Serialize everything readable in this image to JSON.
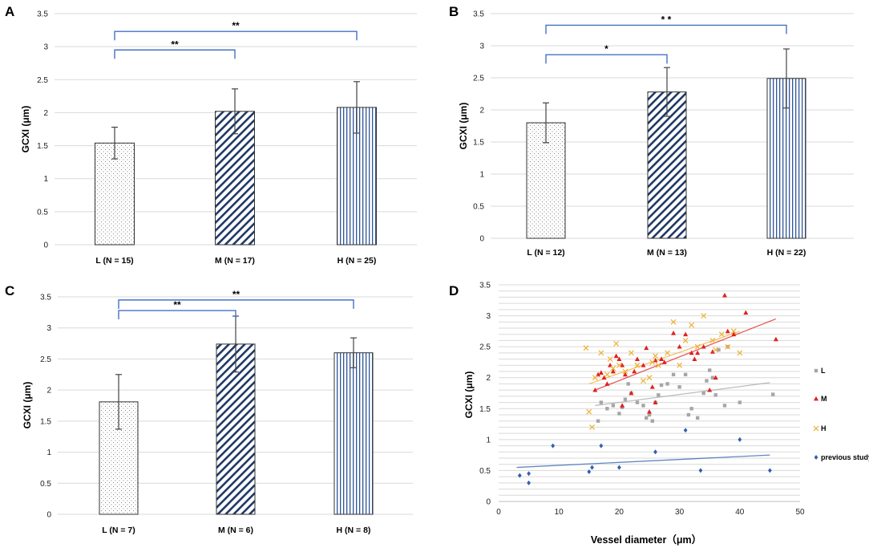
{
  "chart_data": [
    {
      "panel": "A",
      "type": "bar",
      "ylabel": "GCXI (μm)",
      "categories": [
        "L (N = 15)",
        "M (N = 17)",
        "H (N = 25)"
      ],
      "values": [
        1.54,
        2.02,
        2.08
      ],
      "errors": [
        0.24,
        0.34,
        0.39
      ],
      "patterns": [
        "dots",
        "diagonal",
        "vertical"
      ],
      "ylim": [
        0,
        3.5
      ],
      "yticks": [
        "0",
        "0.5",
        "1",
        "1.5",
        "2",
        "2.5",
        "3",
        "3.5"
      ],
      "significance": [
        {
          "from": 0,
          "to": 1,
          "label": "**",
          "level": 2.95
        },
        {
          "from": 0,
          "to": 2,
          "label": "**",
          "level": 3.23
        }
      ]
    },
    {
      "panel": "B",
      "type": "bar",
      "ylabel": "GCXI (μm)",
      "categories": [
        "L (N = 12)",
        "M (N = 13)",
        "H (N = 22)"
      ],
      "values": [
        1.8,
        2.28,
        2.49
      ],
      "errors": [
        0.31,
        0.38,
        0.46
      ],
      "patterns": [
        "dots",
        "diagonal",
        "vertical"
      ],
      "ylim": [
        0,
        3.5
      ],
      "yticks": [
        "0",
        "0.5",
        "1",
        "1.5",
        "2",
        "2.5",
        "3",
        "3.5"
      ],
      "significance": [
        {
          "from": 0,
          "to": 1,
          "label": "*",
          "level": 2.86
        },
        {
          "from": 0,
          "to": 2,
          "label": "* *",
          "level": 3.32
        }
      ]
    },
    {
      "panel": "C",
      "type": "bar",
      "ylabel": "GCXI (μm)",
      "categories": [
        "L (N = 7)",
        "M (N = 6)",
        "H (N = 8)"
      ],
      "values": [
        1.81,
        2.74,
        2.6
      ],
      "errors": [
        0.44,
        0.45,
        0.24
      ],
      "patterns": [
        "dots",
        "diagonal",
        "vertical"
      ],
      "ylim": [
        0,
        3.5
      ],
      "yticks": [
        "0",
        "0.5",
        "1",
        "1.5",
        "2",
        "2.5",
        "3",
        "3.5"
      ],
      "significance": [
        {
          "from": 0,
          "to": 1,
          "label": "**",
          "level": 3.28
        },
        {
          "from": 0,
          "to": 2,
          "label": "**",
          "level": 3.45
        }
      ]
    },
    {
      "panel": "D",
      "type": "scatter",
      "xlabel": "Vessel diameter（μm）",
      "ylabel": "GCXI (μm)",
      "xlim": [
        0,
        50
      ],
      "ylim": [
        0,
        3.5
      ],
      "xticks": [
        "0",
        "10",
        "20",
        "30",
        "40",
        "50"
      ],
      "yticks": [
        "0",
        "0.5",
        "1",
        "1.5",
        "2",
        "2.5",
        "3",
        "3.5"
      ],
      "series": [
        {
          "name": "L",
          "marker": "square",
          "color": "#a6a6a6",
          "trend": [
            [
              16,
              1.55
            ],
            [
              45,
              1.92
            ]
          ],
          "points": [
            [
              16.5,
              1.3
            ],
            [
              17,
              1.6
            ],
            [
              18,
              1.5
            ],
            [
              19,
              1.55
            ],
            [
              20,
              1.42
            ],
            [
              20.5,
              1.52
            ],
            [
              21,
              1.65
            ],
            [
              21.5,
              1.9
            ],
            [
              22,
              1.75
            ],
            [
              23,
              1.6
            ],
            [
              24,
              1.55
            ],
            [
              24.5,
              1.35
            ],
            [
              25,
              1.4
            ],
            [
              25.5,
              1.3
            ],
            [
              26,
              1.6
            ],
            [
              26.5,
              1.72
            ],
            [
              27,
              1.88
            ],
            [
              28,
              1.9
            ],
            [
              29,
              2.05
            ],
            [
              30,
              1.85
            ],
            [
              31,
              2.05
            ],
            [
              32,
              1.5
            ],
            [
              33,
              1.35
            ],
            [
              34,
              1.75
            ],
            [
              34.5,
              1.95
            ],
            [
              35,
              2.12
            ],
            [
              35.5,
              2.0
            ],
            [
              36,
              1.72
            ],
            [
              36.5,
              2.45
            ],
            [
              37.5,
              1.55
            ],
            [
              38,
              2.5
            ],
            [
              40,
              1.6
            ],
            [
              45.5,
              1.73
            ],
            [
              31.5,
              1.4
            ]
          ]
        },
        {
          "name": "M",
          "marker": "triangle",
          "color": "#e02020",
          "trend": [
            [
              16,
              1.8
            ],
            [
              46,
              2.95
            ]
          ],
          "points": [
            [
              16,
              1.8
            ],
            [
              16.5,
              2.05
            ],
            [
              17,
              2.08
            ],
            [
              17.5,
              2.0
            ],
            [
              18,
              1.9
            ],
            [
              18.5,
              2.2
            ],
            [
              19,
              2.1
            ],
            [
              19.5,
              2.35
            ],
            [
              20,
              2.3
            ],
            [
              20.5,
              2.2
            ],
            [
              20.5,
              1.55
            ],
            [
              21,
              2.05
            ],
            [
              22,
              1.75
            ],
            [
              22.5,
              2.1
            ],
            [
              23,
              2.3
            ],
            [
              24,
              2.2
            ],
            [
              24.5,
              2.48
            ],
            [
              25,
              1.45
            ],
            [
              25.5,
              1.85
            ],
            [
              26,
              2.28
            ],
            [
              26,
              1.6
            ],
            [
              27,
              2.3
            ],
            [
              27.5,
              2.25
            ],
            [
              29,
              2.72
            ],
            [
              30,
              2.5
            ],
            [
              31,
              2.7
            ],
            [
              32,
              2.4
            ],
            [
              32.5,
              2.3
            ],
            [
              33,
              2.4
            ],
            [
              34,
              2.5
            ],
            [
              35,
              1.8
            ],
            [
              35.5,
              2.42
            ],
            [
              36,
              2.0
            ],
            [
              37.5,
              3.33
            ],
            [
              38,
              2.75
            ],
            [
              39,
              2.7
            ],
            [
              41,
              3.05
            ],
            [
              46,
              2.62
            ]
          ]
        },
        {
          "name": "H",
          "marker": "cross",
          "color": "#f0b030",
          "trend": [
            [
              15,
              1.9
            ],
            [
              40,
              2.75
            ]
          ],
          "points": [
            [
              14.5,
              2.48
            ],
            [
              15,
              1.45
            ],
            [
              15.5,
              1.2
            ],
            [
              16,
              2.0
            ],
            [
              17,
              2.4
            ],
            [
              18,
              2.05
            ],
            [
              18.5,
              2.3
            ],
            [
              19,
              2.15
            ],
            [
              19.5,
              2.55
            ],
            [
              20,
              2.2
            ],
            [
              21,
              2.1
            ],
            [
              22,
              2.4
            ],
            [
              23,
              2.2
            ],
            [
              24,
              1.95
            ],
            [
              25,
              2.0
            ],
            [
              25.5,
              2.25
            ],
            [
              26,
              2.35
            ],
            [
              26.5,
              2.2
            ],
            [
              28,
              2.4
            ],
            [
              29,
              2.9
            ],
            [
              30,
              2.2
            ],
            [
              31,
              2.6
            ],
            [
              32,
              2.85
            ],
            [
              33,
              2.5
            ],
            [
              34,
              3.0
            ],
            [
              35.5,
              2.6
            ],
            [
              36,
              2.45
            ],
            [
              37,
              2.7
            ],
            [
              38,
              2.5
            ],
            [
              39,
              2.75
            ],
            [
              40,
              2.4
            ]
          ]
        },
        {
          "name": "previous study",
          "marker": "diamond",
          "color": "#3060b0",
          "trend": [
            [
              3,
              0.55
            ],
            [
              45,
              0.75
            ]
          ],
          "points": [
            [
              3.5,
              0.42
            ],
            [
              5,
              0.45
            ],
            [
              5,
              0.3
            ],
            [
              9,
              0.9
            ],
            [
              15,
              0.48
            ],
            [
              15.5,
              0.55
            ],
            [
              17,
              0.9
            ],
            [
              20,
              0.55
            ],
            [
              26,
              0.8
            ],
            [
              31,
              1.15
            ],
            [
              33.5,
              0.5
            ],
            [
              40,
              1.0
            ],
            [
              45,
              0.5
            ]
          ]
        }
      ]
    }
  ]
}
